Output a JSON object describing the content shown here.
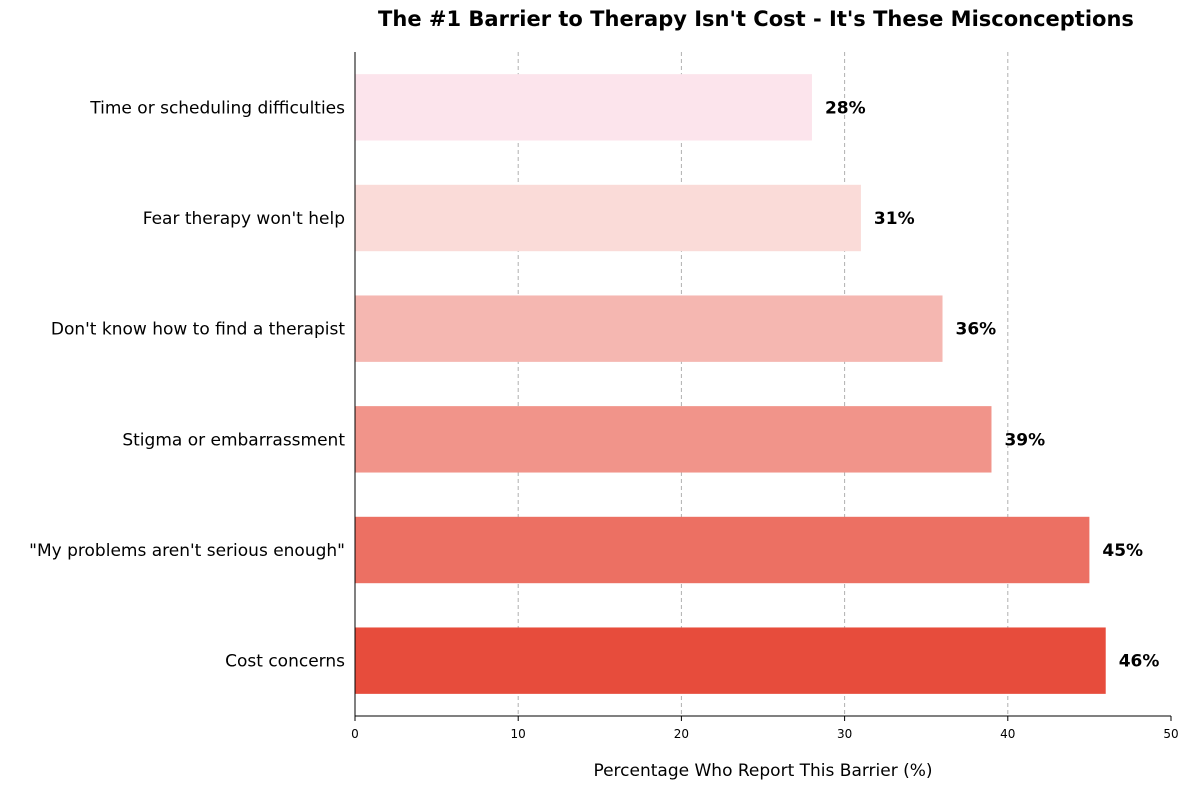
{
  "chart_data": {
    "type": "bar",
    "orientation": "horizontal",
    "title": "The #1 Barrier to Therapy Isn't Cost - It's These Misconceptions",
    "xlabel": "Percentage Who Report This Barrier (%)",
    "ylabel": "",
    "xlim": [
      0,
      50
    ],
    "xticks": [
      0,
      10,
      20,
      30,
      40,
      50
    ],
    "grid": "x-dashed",
    "categories": [
      "Cost concerns",
      "\"My problems aren't serious enough\"",
      "Stigma or embarrassment",
      "Don't know how to find a therapist",
      "Fear therapy won't help",
      "Time or scheduling difficulties"
    ],
    "values": [
      46,
      45,
      39,
      36,
      31,
      28
    ],
    "value_labels": [
      "46%",
      "45%",
      "39%",
      "36%",
      "31%",
      "28%"
    ],
    "colors": [
      "#e74c3c",
      "#ec7063",
      "#f1948a",
      "#f5b7b1",
      "#fadbd8",
      "#fce4ec"
    ]
  }
}
